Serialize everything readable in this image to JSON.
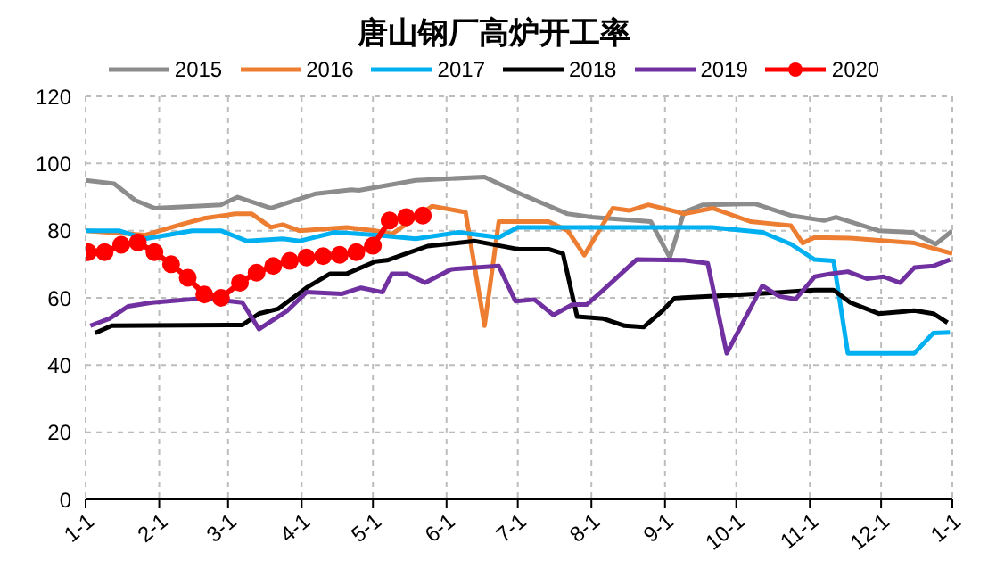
{
  "chart_data": {
    "type": "line",
    "title": "唐山钢厂高炉开工率",
    "xlim": [
      "--01-01",
      "--12-31"
    ],
    "xticks": [
      {
        "value": "--01-01",
        "label": "1-1"
      },
      {
        "value": "--02-01",
        "label": "2-1"
      },
      {
        "value": "--03-01",
        "label": "3-1"
      },
      {
        "value": "--04-01",
        "label": "4-1"
      },
      {
        "value": "--05-01",
        "label": "5-1"
      },
      {
        "value": "--06-01",
        "label": "6-1"
      },
      {
        "value": "--07-01",
        "label": "7-1"
      },
      {
        "value": "--08-01",
        "label": "8-1"
      },
      {
        "value": "--09-01",
        "label": "9-1"
      },
      {
        "value": "--10-01",
        "label": "10-1"
      },
      {
        "value": "--11-01",
        "label": "11-1"
      },
      {
        "value": "--12-01",
        "label": "12-1"
      },
      {
        "value": "--12-31",
        "label": "1-1"
      }
    ],
    "ylim": [
      0,
      120
    ],
    "yticks": [
      0,
      20,
      40,
      60,
      80,
      100,
      120
    ],
    "grid": true,
    "legend": "top",
    "line_style": "solid",
    "series": [
      {
        "name": "2015",
        "color": "#8c8c8c",
        "marker": "none",
        "x": [
          "--01-01",
          "--01-13",
          "--01-22",
          "--01-30",
          "--02-27",
          "--03-05",
          "--03-19",
          "--04-07",
          "--04-22",
          "--04-25",
          "--05-19",
          "--06-17",
          "--07-02",
          "--07-22",
          "--08-01",
          "--08-26",
          "--09-03",
          "--09-09",
          "--09-17",
          "--10-09",
          "--10-24",
          "--11-07",
          "--11-12",
          "--11-30",
          "--12-14",
          "--12-24",
          "--12-31"
        ],
        "values": [
          95,
          94,
          89,
          86.7,
          87.7,
          90,
          86.7,
          91,
          92.2,
          92,
          95,
          96,
          91,
          85,
          84,
          82.7,
          72,
          85.5,
          87.7,
          88,
          84.5,
          83,
          84,
          80,
          79.5,
          76,
          80
        ]
      },
      {
        "name": "2016",
        "color": "#ed7d31",
        "marker": "none",
        "x": [
          "--01-01",
          "--01-26",
          "--02-10",
          "--02-20",
          "--03-04",
          "--03-11",
          "--03-19",
          "--03-24",
          "--03-31",
          "--04-20",
          "--05-02",
          "--05-09",
          "--05-26",
          "--06-09",
          "--06-17",
          "--06-23",
          "--07-14",
          "--07-22",
          "--07-29",
          "--08-10",
          "--08-17",
          "--08-25",
          "--09-04",
          "--09-09",
          "--09-21",
          "--10-07",
          "--10-17",
          "--10-24",
          "--10-29",
          "--11-03",
          "--11-18",
          "--12-15",
          "--12-31"
        ],
        "values": [
          80,
          78.7,
          81.8,
          83.7,
          85,
          85,
          81,
          81.8,
          80,
          81,
          80,
          79,
          87.3,
          85.5,
          51.7,
          82.7,
          82.7,
          80,
          72.7,
          86.7,
          86,
          87.7,
          86,
          85,
          86.7,
          82.7,
          82,
          81.5,
          76.3,
          78,
          77.8,
          76.3,
          73.2
        ]
      },
      {
        "name": "2017",
        "color": "#00b0f0",
        "marker": "none",
        "x": [
          "--01-01",
          "--01-15",
          "--01-26",
          "--02-15",
          "--02-27",
          "--03-09",
          "--03-24",
          "--03-31",
          "--04-15",
          "--05-02",
          "--05-19",
          "--06-06",
          "--06-23",
          "--07-01",
          "--09-04",
          "--09-21",
          "--10-12",
          "--10-24",
          "--11-03",
          "--11-11",
          "--11-17",
          "--12-15",
          "--12-23",
          "--12-30"
        ],
        "values": [
          80,
          80,
          77.6,
          80,
          80,
          76.9,
          77.6,
          76.9,
          79.5,
          78.7,
          77.6,
          79.5,
          78,
          81,
          81,
          81,
          79.5,
          76,
          71.4,
          71,
          43.5,
          43.5,
          49.5,
          49.7
        ]
      },
      {
        "name": "2018",
        "color": "#000000",
        "marker": "none",
        "x": [
          "--01-05",
          "--01-12",
          "--03-07",
          "--03-14",
          "--03-22",
          "--04-03",
          "--04-13",
          "--04-20",
          "--05-02",
          "--05-07",
          "--05-24",
          "--06-13",
          "--07-01",
          "--07-14",
          "--07-20",
          "--07-26",
          "--08-06",
          "--08-15",
          "--08-23",
          "--08-31",
          "--09-05",
          "--10-04",
          "--10-17",
          "--11-03",
          "--11-11",
          "--11-18",
          "--11-30",
          "--12-15",
          "--12-23",
          "--12-29"
        ],
        "values": [
          49.5,
          51.7,
          51.9,
          55.3,
          56.7,
          63,
          67.2,
          67.2,
          70.8,
          71.2,
          75.4,
          76.9,
          74.5,
          74.5,
          73.2,
          54.4,
          53.8,
          51.7,
          51.3,
          56.2,
          59.9,
          61,
          61.5,
          62.3,
          62.3,
          58.6,
          55.3,
          56.2,
          55.3,
          52.6
        ]
      },
      {
        "name": "2019",
        "color": "#7030a0",
        "marker": "none",
        "x": [
          "--01-03",
          "--01-11",
          "--01-19",
          "--01-29",
          "--02-20",
          "--03-07",
          "--03-14",
          "--03-26",
          "--04-03",
          "--04-18",
          "--04-26",
          "--05-05",
          "--05-09",
          "--05-15",
          "--05-23",
          "--06-03",
          "--06-23",
          "--06-30",
          "--07-08",
          "--07-16",
          "--07-24",
          "--07-30",
          "--08-05",
          "--08-20",
          "--09-09",
          "--09-19",
          "--09-27",
          "--10-12",
          "--10-19",
          "--10-26",
          "--11-03",
          "--11-10",
          "--11-17",
          "--11-25",
          "--12-02",
          "--12-09",
          "--12-15",
          "--12-23",
          "--12-30"
        ],
        "values": [
          51.7,
          53.8,
          57.5,
          58.6,
          59.9,
          58.6,
          50.7,
          56.2,
          61.7,
          61.2,
          63,
          61.7,
          67.2,
          67.2,
          64.5,
          68.5,
          69.5,
          59,
          59.5,
          54.9,
          58,
          58,
          61.7,
          71.4,
          71.2,
          70.3,
          43.5,
          63.6,
          60.5,
          59.6,
          66.3,
          67.2,
          67.8,
          65.7,
          66.3,
          64.5,
          69,
          69.5,
          71.4
        ]
      },
      {
        "name": "2020",
        "color": "#ff0000",
        "marker": "circle",
        "x": [
          "--01-02",
          "--01-09",
          "--01-16",
          "--01-23",
          "--01-30",
          "--02-06",
          "--02-13",
          "--02-20",
          "--02-27",
          "--03-06",
          "--03-13",
          "--03-20",
          "--03-27",
          "--04-03",
          "--04-10",
          "--04-17",
          "--04-24",
          "--05-01",
          "--05-08",
          "--05-15",
          "--05-22"
        ],
        "values": [
          73.6,
          73.6,
          75.8,
          76.5,
          73.6,
          70,
          66,
          61,
          60,
          64.5,
          67.5,
          69.5,
          71,
          72,
          72.4,
          72.8,
          73.6,
          75.5,
          83,
          84,
          84.5
        ]
      }
    ]
  }
}
